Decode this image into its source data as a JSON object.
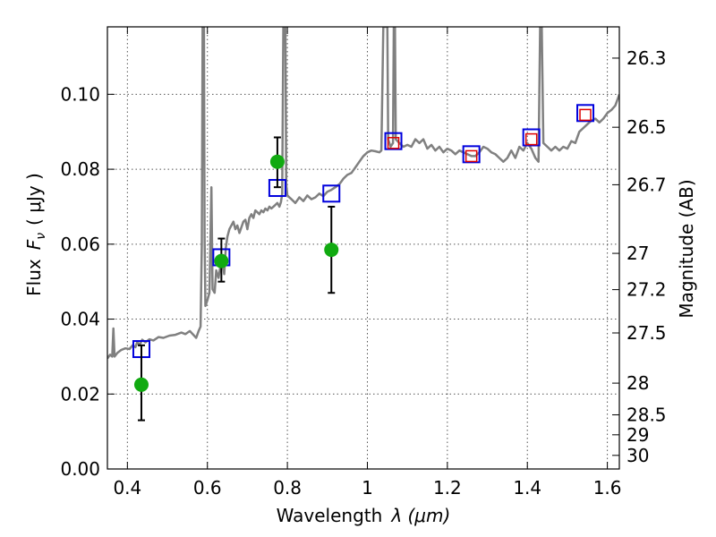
{
  "chart_data": {
    "type": "scatter",
    "xlabel_text": "Wavelength",
    "xlabel_symbol": "λ (μm)",
    "ylabel_text": "Flux",
    "ylabel_symbol": "F",
    "ylabel_subscript": "ν",
    "ylabel_unit": "( μJy )",
    "y2label": "Magnitude (AB)",
    "xlim": [
      0.35,
      1.63
    ],
    "ylim": [
      0.0,
      0.118
    ],
    "x_ticks": [
      0.4,
      0.6,
      0.8,
      1.0,
      1.2,
      1.4,
      1.6
    ],
    "x_tick_labels": [
      "0.4",
      "0.6",
      "0.8",
      "1",
      "1.2",
      "1.4",
      "1.6"
    ],
    "y_ticks": [
      0.0,
      0.02,
      0.04,
      0.06,
      0.08,
      0.1
    ],
    "y_tick_labels": [
      "0.00",
      "0.02",
      "0.04",
      "0.06",
      "0.08",
      "0.10"
    ],
    "y2_ticks": [
      26.3,
      26.5,
      26.7,
      27,
      27.2,
      27.5,
      28,
      28.5,
      29,
      30
    ],
    "y2_tick_labels": [
      "26.3",
      "26.5",
      "26.7",
      "27",
      "27.2",
      "27.5",
      "28",
      "28.5",
      "29",
      "30"
    ],
    "grid": true,
    "colors": {
      "spectrum": "#808080",
      "observed": "#11aa11",
      "model_box": "#0000dd",
      "model_inner": "#dd0000",
      "errorbar": "#000000"
    },
    "spectrum": [
      [
        0.35,
        0.0295
      ],
      [
        0.357,
        0.0305
      ],
      [
        0.362,
        0.03
      ],
      [
        0.365,
        0.0375
      ],
      [
        0.368,
        0.03
      ],
      [
        0.375,
        0.031
      ],
      [
        0.385,
        0.0318
      ],
      [
        0.395,
        0.0322
      ],
      [
        0.405,
        0.032
      ],
      [
        0.413,
        0.033
      ],
      [
        0.42,
        0.0325
      ],
      [
        0.425,
        0.034
      ],
      [
        0.43,
        0.033
      ],
      [
        0.437,
        0.0345
      ],
      [
        0.445,
        0.0338
      ],
      [
        0.455,
        0.0346
      ],
      [
        0.465,
        0.0343
      ],
      [
        0.478,
        0.0352
      ],
      [
        0.49,
        0.035
      ],
      [
        0.505,
        0.0356
      ],
      [
        0.52,
        0.0358
      ],
      [
        0.535,
        0.0364
      ],
      [
        0.545,
        0.036
      ],
      [
        0.556,
        0.0368
      ],
      [
        0.565,
        0.0358
      ],
      [
        0.572,
        0.035
      ],
      [
        0.578,
        0.0368
      ],
      [
        0.583,
        0.038
      ],
      [
        0.586,
        0.06
      ],
      [
        0.588,
        0.118
      ],
      [
        0.5915,
        0.118
      ],
      [
        0.593,
        0.062
      ],
      [
        0.595,
        0.0435
      ],
      [
        0.6,
        0.045
      ],
      [
        0.605,
        0.047
      ],
      [
        0.61,
        0.0752
      ],
      [
        0.613,
        0.048
      ],
      [
        0.618,
        0.047
      ],
      [
        0.622,
        0.053
      ],
      [
        0.628,
        0.051
      ],
      [
        0.633,
        0.0545
      ],
      [
        0.638,
        0.056
      ],
      [
        0.642,
        0.052
      ],
      [
        0.646,
        0.059
      ],
      [
        0.65,
        0.062
      ],
      [
        0.655,
        0.064
      ],
      [
        0.66,
        0.065
      ],
      [
        0.665,
        0.066
      ],
      [
        0.67,
        0.064
      ],
      [
        0.675,
        0.065
      ],
      [
        0.68,
        0.063
      ],
      [
        0.685,
        0.0645
      ],
      [
        0.69,
        0.066
      ],
      [
        0.695,
        0.0665
      ],
      [
        0.7,
        0.064
      ],
      [
        0.705,
        0.067
      ],
      [
        0.71,
        0.068
      ],
      [
        0.715,
        0.067
      ],
      [
        0.72,
        0.069
      ],
      [
        0.725,
        0.0685
      ],
      [
        0.73,
        0.068
      ],
      [
        0.735,
        0.069
      ],
      [
        0.74,
        0.0685
      ],
      [
        0.745,
        0.0695
      ],
      [
        0.75,
        0.069
      ],
      [
        0.755,
        0.07
      ],
      [
        0.76,
        0.0695
      ],
      [
        0.765,
        0.07
      ],
      [
        0.77,
        0.0705
      ],
      [
        0.775,
        0.071
      ],
      [
        0.78,
        0.07
      ],
      [
        0.784,
        0.0712
      ],
      [
        0.787,
        0.0735
      ],
      [
        0.79,
        0.118
      ],
      [
        0.795,
        0.118
      ],
      [
        0.797,
        0.076
      ],
      [
        0.8,
        0.073
      ],
      [
        0.81,
        0.072
      ],
      [
        0.82,
        0.071
      ],
      [
        0.83,
        0.0725
      ],
      [
        0.84,
        0.0715
      ],
      [
        0.85,
        0.073
      ],
      [
        0.86,
        0.072
      ],
      [
        0.87,
        0.0725
      ],
      [
        0.88,
        0.0735
      ],
      [
        0.89,
        0.0728
      ],
      [
        0.9,
        0.074
      ],
      [
        0.91,
        0.0745
      ],
      [
        0.92,
        0.0752
      ],
      [
        0.93,
        0.076
      ],
      [
        0.94,
        0.0775
      ],
      [
        0.95,
        0.0785
      ],
      [
        0.96,
        0.079
      ],
      [
        0.97,
        0.0805
      ],
      [
        0.98,
        0.082
      ],
      [
        0.99,
        0.0835
      ],
      [
        1.0,
        0.0845
      ],
      [
        1.01,
        0.085
      ],
      [
        1.02,
        0.0848
      ],
      [
        1.03,
        0.0845
      ],
      [
        1.035,
        0.085
      ],
      [
        1.04,
        0.118
      ],
      [
        1.05,
        0.118
      ],
      [
        1.052,
        0.088
      ],
      [
        1.058,
        0.086
      ],
      [
        1.064,
        0.087
      ],
      [
        1.066,
        0.118
      ],
      [
        1.069,
        0.118
      ],
      [
        1.071,
        0.088
      ],
      [
        1.08,
        0.087
      ],
      [
        1.09,
        0.086
      ],
      [
        1.1,
        0.0865
      ],
      [
        1.11,
        0.086
      ],
      [
        1.12,
        0.088
      ],
      [
        1.13,
        0.087
      ],
      [
        1.14,
        0.088
      ],
      [
        1.15,
        0.0855
      ],
      [
        1.16,
        0.0865
      ],
      [
        1.17,
        0.085
      ],
      [
        1.18,
        0.086
      ],
      [
        1.19,
        0.0845
      ],
      [
        1.2,
        0.0855
      ],
      [
        1.21,
        0.085
      ],
      [
        1.22,
        0.084
      ],
      [
        1.23,
        0.085
      ],
      [
        1.24,
        0.0845
      ],
      [
        1.25,
        0.084
      ],
      [
        1.26,
        0.0835
      ],
      [
        1.27,
        0.0835
      ],
      [
        1.28,
        0.0845
      ],
      [
        1.29,
        0.086
      ],
      [
        1.3,
        0.0855
      ],
      [
        1.31,
        0.0845
      ],
      [
        1.32,
        0.084
      ],
      [
        1.33,
        0.083
      ],
      [
        1.34,
        0.082
      ],
      [
        1.35,
        0.083
      ],
      [
        1.36,
        0.085
      ],
      [
        1.37,
        0.083
      ],
      [
        1.38,
        0.086
      ],
      [
        1.39,
        0.085
      ],
      [
        1.4,
        0.087
      ],
      [
        1.41,
        0.0855
      ],
      [
        1.42,
        0.083
      ],
      [
        1.428,
        0.082
      ],
      [
        1.432,
        0.118
      ],
      [
        1.436,
        0.118
      ],
      [
        1.44,
        0.087
      ],
      [
        1.45,
        0.086
      ],
      [
        1.46,
        0.085
      ],
      [
        1.47,
        0.086
      ],
      [
        1.48,
        0.085
      ],
      [
        1.49,
        0.086
      ],
      [
        1.5,
        0.0855
      ],
      [
        1.51,
        0.0875
      ],
      [
        1.52,
        0.087
      ],
      [
        1.53,
        0.09
      ],
      [
        1.54,
        0.091
      ],
      [
        1.55,
        0.092
      ],
      [
        1.56,
        0.093
      ],
      [
        1.57,
        0.0935
      ],
      [
        1.58,
        0.0925
      ],
      [
        1.59,
        0.0935
      ],
      [
        1.6,
        0.095
      ],
      [
        1.61,
        0.0958
      ],
      [
        1.62,
        0.097
      ],
      [
        1.63,
        0.1
      ]
    ],
    "model_points": [
      {
        "x": 0.435,
        "y": 0.032
      },
      {
        "x": 0.635,
        "y": 0.0565
      },
      {
        "x": 0.775,
        "y": 0.075
      },
      {
        "x": 0.91,
        "y": 0.0735
      },
      {
        "x": 1.065,
        "y": 0.0875
      },
      {
        "x": 1.26,
        "y": 0.084
      },
      {
        "x": 1.41,
        "y": 0.0885
      },
      {
        "x": 1.545,
        "y": 0.095
      }
    ],
    "red_points": [
      {
        "x": 1.065,
        "y": 0.087
      },
      {
        "x": 1.26,
        "y": 0.0835
      },
      {
        "x": 1.41,
        "y": 0.088
      },
      {
        "x": 1.545,
        "y": 0.0945
      }
    ],
    "observed_points": [
      {
        "x": 0.435,
        "y": 0.0225,
        "yerr_low": 0.013,
        "yerr_high": 0.033
      },
      {
        "x": 0.635,
        "y": 0.0555,
        "yerr_low": 0.05,
        "yerr_high": 0.0615
      },
      {
        "x": 0.775,
        "y": 0.082,
        "yerr_low": 0.0752,
        "yerr_high": 0.0885
      },
      {
        "x": 0.91,
        "y": 0.0585,
        "yerr_low": 0.047,
        "yerr_high": 0.07
      }
    ]
  }
}
